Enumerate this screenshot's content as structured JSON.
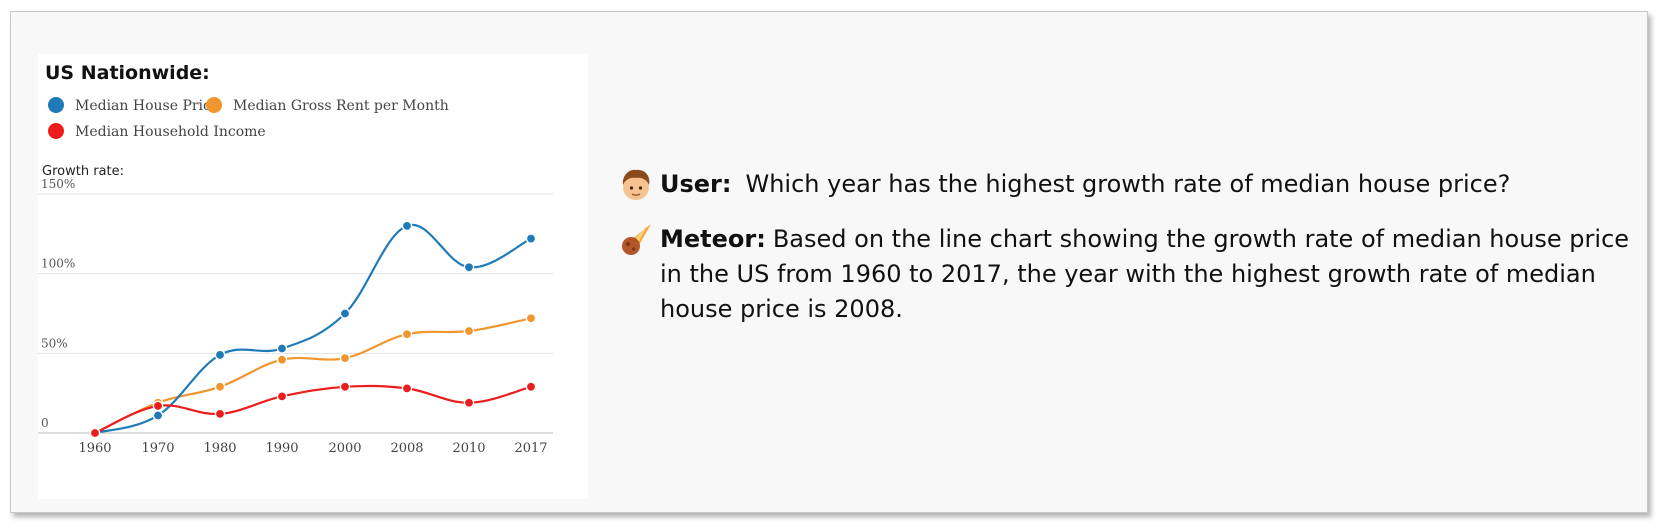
{
  "chart_data": {
    "type": "line",
    "title": "US Nationwide:",
    "subtitle": "Growth rate:",
    "categories": [
      "1960",
      "1970",
      "1980",
      "1990",
      "2000",
      "2008",
      "2010",
      "2017"
    ],
    "series": [
      {
        "name": "Median House Price",
        "color": "#1f7ab8",
        "values": [
          0,
          11,
          49,
          53,
          75,
          130,
          104,
          122
        ]
      },
      {
        "name": "Median Gross Rent per Month",
        "color": "#f0962e",
        "values": [
          0,
          19,
          29,
          46,
          47,
          62,
          64,
          72
        ]
      },
      {
        "name": "Median Household Income",
        "color": "#ed1c1c",
        "values": [
          0,
          17,
          12,
          23,
          29,
          28,
          19,
          29
        ]
      }
    ],
    "y_ticks": [
      "0",
      "50%",
      "100%",
      "150%"
    ],
    "ylim": [
      0,
      150
    ],
    "grid": true,
    "legend_position": "top-left"
  },
  "conversation": {
    "user": {
      "icon": "person-avatar-icon",
      "speaker": "User:",
      "text": "Which year has the highest growth rate of median house price?"
    },
    "assistant": {
      "icon": "meteor-icon",
      "speaker": "Meteor:",
      "text": "Based on the line chart showing the growth rate of median house price in the US from 1960 to 2017, the year with the highest growth rate of median house price is 2008."
    }
  }
}
